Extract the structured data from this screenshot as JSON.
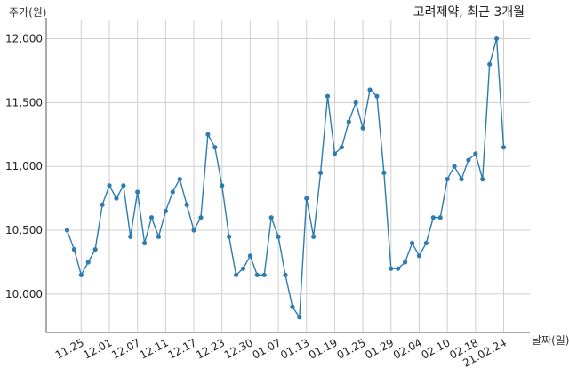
{
  "chart_data": {
    "type": "line",
    "title": "고려제약, 최근 3개월",
    "ylabel": "주가(원)",
    "xlabel": "날짜(일)",
    "ylim": [
      9700,
      12150
    ],
    "yticks": [
      10000,
      10500,
      11000,
      11500,
      12000
    ],
    "ytick_labels": [
      "10,000",
      "10,500",
      "11,000",
      "11,500",
      "12,000"
    ],
    "xtick_labels": [
      "11.25",
      "12.01",
      "12.07",
      "12.11",
      "12.17",
      "12.23",
      "12.30",
      "01.07",
      "01.13",
      "01.19",
      "01.25",
      "01.29",
      "02.04",
      "02.10",
      "02.18",
      "21.02.24"
    ],
    "xtick_index": [
      2,
      6,
      10,
      14,
      18,
      22,
      26,
      30,
      34,
      38,
      42,
      46,
      50,
      54,
      58,
      62
    ],
    "grid": true,
    "color": "#2e7bb0",
    "series": [
      {
        "values": [
          10500,
          10350,
          10150,
          10250,
          10350,
          10700,
          10850,
          10750,
          10850,
          10450,
          10800,
          10400,
          10600,
          10450,
          10650,
          10800,
          10900,
          10700,
          10500,
          10600,
          11250,
          11150,
          10850,
          10450,
          10150,
          10200,
          10300,
          10150,
          10150,
          10600,
          10450,
          10150,
          9900,
          9820,
          10750,
          10450,
          10950,
          11550,
          11100,
          11150,
          11350,
          11500,
          11300,
          11600,
          11550,
          10950,
          10200,
          10200,
          10250,
          10400,
          10300,
          10400,
          10600,
          10600,
          10900,
          11000,
          10900,
          11050,
          11100,
          10900,
          11800,
          12000,
          11150
        ]
      }
    ]
  }
}
